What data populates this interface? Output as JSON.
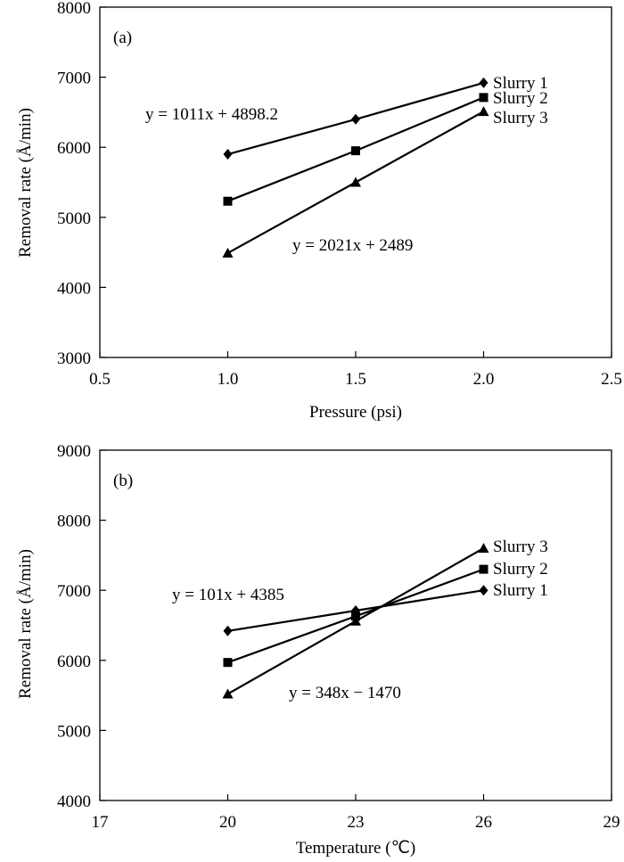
{
  "chart_data": [
    {
      "type": "line",
      "panel_label": "(a)",
      "xlabel": "Pressure (psi)",
      "ylabel": "Removal rate (Å/min)",
      "xlim": [
        0.5,
        2.5
      ],
      "ylim": [
        3000,
        8000
      ],
      "xticks": [
        0.5,
        1.0,
        1.5,
        2.0,
        2.5
      ],
      "xtick_labels": [
        "0.5",
        "1.0",
        "1.5",
        "2.0",
        "2.5"
      ],
      "yticks": [
        3000,
        4000,
        5000,
        6000,
        7000,
        8000
      ],
      "ytick_labels": [
        "3000",
        "4000",
        "5000",
        "6000",
        "7000",
        "8000"
      ],
      "grid": false,
      "series": [
        {
          "name": "Slurry 1",
          "marker": "diamond",
          "x": [
            1.0,
            1.5,
            2.0
          ],
          "y": [
            5900,
            6400,
            6920
          ]
        },
        {
          "name": "Slurry 2",
          "marker": "square",
          "x": [
            1.0,
            1.5,
            2.0
          ],
          "y": [
            5230,
            5950,
            6710
          ]
        },
        {
          "name": "Slurry 3",
          "marker": "triangle",
          "x": [
            1.0,
            1.5,
            2.0
          ],
          "y": [
            4490,
            5500,
            6510
          ]
        }
      ],
      "annotations": [
        {
          "text": "y = 1011x + 4898.2",
          "at": [
            0.87,
            6500
          ]
        },
        {
          "text": "y = 2021x + 2489",
          "at": [
            1.35,
            4660
          ]
        }
      ]
    },
    {
      "type": "line",
      "panel_label": "(b)",
      "xlabel": "Temperature (℃)",
      "ylabel": "Removal rate (Å/min)",
      "xlim": [
        17,
        29
      ],
      "ylim": [
        4000,
        9000
      ],
      "xticks": [
        17,
        20,
        23,
        26,
        29
      ],
      "xtick_labels": [
        "17",
        "20",
        "23",
        "26",
        "29"
      ],
      "yticks": [
        4000,
        5000,
        6000,
        7000,
        8000,
        9000
      ],
      "ytick_labels": [
        "4000",
        "5000",
        "6000",
        "7000",
        "8000",
        "9000"
      ],
      "grid": false,
      "series": [
        {
          "name": "Slurry 3",
          "marker": "triangle",
          "x": [
            20,
            23,
            26
          ],
          "y": [
            5520,
            6560,
            7600
          ]
        },
        {
          "name": "Slurry 2",
          "marker": "square",
          "x": [
            20,
            23,
            26
          ],
          "y": [
            5970,
            6630,
            7300
          ]
        },
        {
          "name": "Slurry 1",
          "marker": "diamond",
          "x": [
            20,
            23,
            26
          ],
          "y": [
            6420,
            6710,
            7000
          ]
        }
      ],
      "annotations": [
        {
          "text": "y = 101x + 4385",
          "at": [
            18.6,
            6770
          ]
        },
        {
          "text": "y = 348x − 1470",
          "at": [
            22.3,
            5480
          ]
        }
      ]
    }
  ]
}
